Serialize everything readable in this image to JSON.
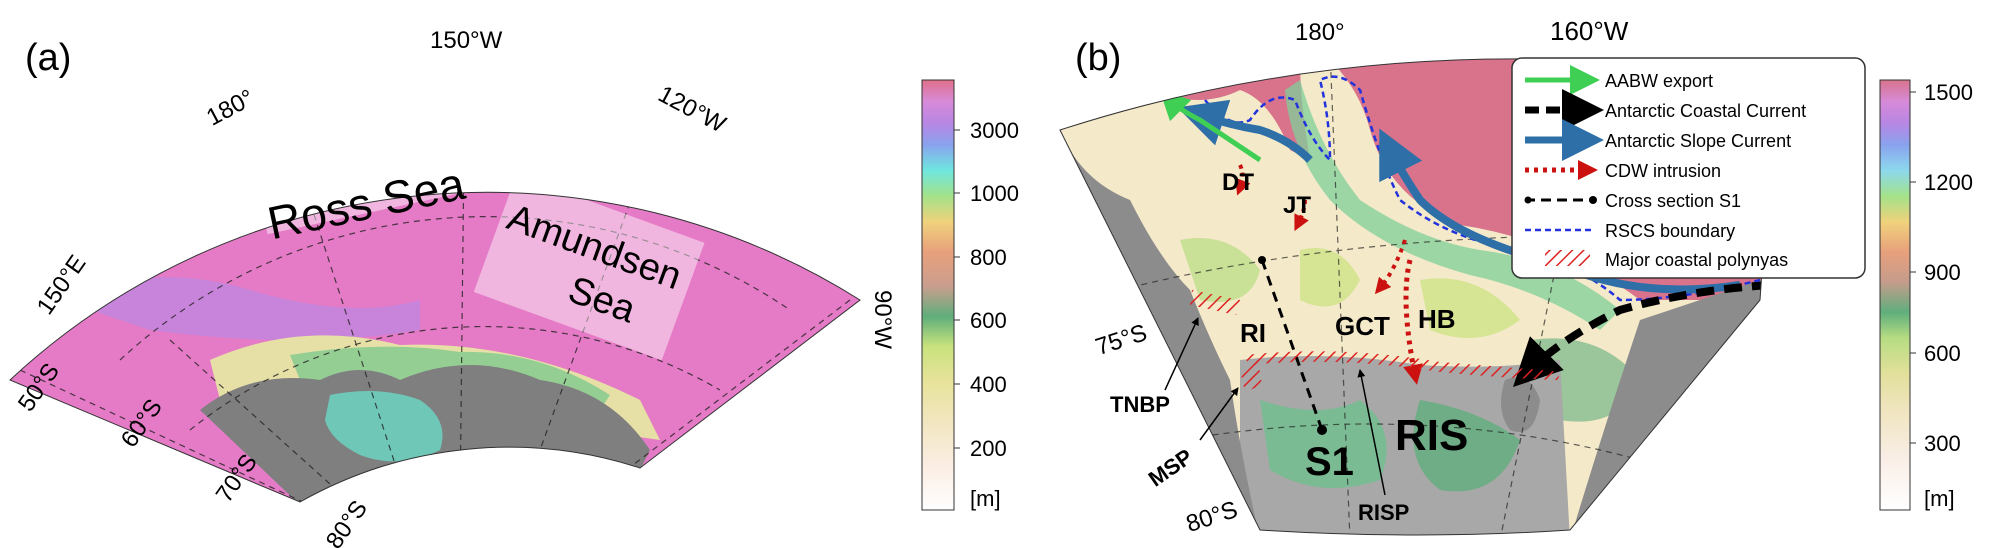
{
  "panel_a": {
    "label": "(a)",
    "lat_labels": [
      "50°S",
      "60°S",
      "70°S",
      "80°S"
    ],
    "lon_labels": [
      "150°E",
      "180°",
      "150°W",
      "120°W",
      "90°W"
    ],
    "region_labels": {
      "ross": "Ross Sea",
      "amundsen_line1": "Amundsen",
      "amundsen_line2": "Sea"
    },
    "colorbar": {
      "unit": "[m]",
      "ticks": [
        "3000",
        "1000",
        "800",
        "600",
        "400",
        "200"
      ]
    },
    "colors": {
      "deep": "#e57bc6",
      "shelf": "#e6e0a6",
      "land": "#7f7f7f"
    }
  },
  "panel_b": {
    "label": "(b)",
    "lat_labels": [
      "75°S",
      "80°S"
    ],
    "lon_labels": [
      "180°",
      "160°W"
    ],
    "place_labels": {
      "dt": "DT",
      "jt": "JT",
      "ri": "RI",
      "gct": "GCT",
      "hb": "HB",
      "s1": "S1",
      "ris": "RIS",
      "tnbp": "TNBP",
      "msp": "MSP",
      "risp": "RISP"
    },
    "legend": [
      {
        "label": "AABW export",
        "color": "#3fcf55",
        "style": "solid-arrow"
      },
      {
        "label": "Antarctic Coastal Current",
        "color": "#000000",
        "style": "dashed-arrow"
      },
      {
        "label": "Antarctic Slope Current",
        "color": "#2e6fa8",
        "style": "solid-arrow"
      },
      {
        "label": "CDW intrusion",
        "color": "#cc1111",
        "style": "dotted-arrow"
      },
      {
        "label": "Cross section S1",
        "color": "#000000",
        "style": "dash-dot-line"
      },
      {
        "label": "RSCS boundary",
        "color": "#2233dd",
        "style": "dashed-line"
      },
      {
        "label": "Major coastal polynyas",
        "color": "#dd2222",
        "style": "hatch"
      }
    ],
    "colorbar": {
      "unit": "[m]",
      "ticks": [
        "1500",
        "1200",
        "900",
        "600",
        "300"
      ]
    },
    "colors": {
      "deep": "#d9738c",
      "shelf": "#f4e9c8",
      "land": "#8c8c8c"
    }
  }
}
